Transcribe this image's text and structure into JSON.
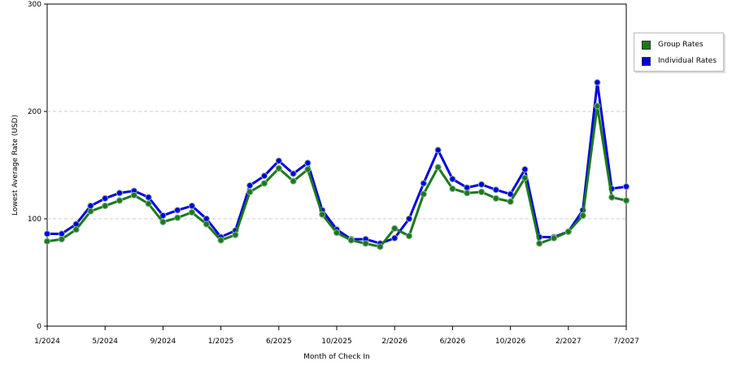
{
  "chart_data": {
    "type": "line",
    "xlabel": "Month of Check In",
    "ylabel": "Lowest Average Rate (USD)",
    "ylim": [
      0,
      300
    ],
    "yticks": [
      0,
      100,
      200,
      300
    ],
    "x_tick_labels": [
      "1/2024",
      "5/2024",
      "9/2024",
      "1/2025",
      "6/2025",
      "10/2025",
      "2/2026",
      "6/2026",
      "10/2026",
      "2/2027",
      "7/2027"
    ],
    "x_tick_indices": [
      0,
      4,
      8,
      12,
      16,
      20,
      24,
      28,
      32,
      36,
      40
    ],
    "grid": "horizontal dashed",
    "legend_position": "right",
    "series": [
      {
        "name": "Group Rates",
        "color": "#1a7a1a",
        "values": [
          79,
          81,
          90,
          107,
          112,
          117,
          122,
          114,
          97,
          101,
          106,
          95,
          80,
          85,
          125,
          133,
          147,
          135,
          146,
          104,
          87,
          80,
          77,
          74,
          91,
          84,
          123,
          148,
          128,
          124,
          125,
          119,
          116,
          138,
          77,
          82,
          88,
          103,
          205,
          120,
          117
        ]
      },
      {
        "name": "Individual Rates",
        "color": "#0000dd",
        "values": [
          86,
          86,
          95,
          112,
          119,
          124,
          126,
          120,
          103,
          108,
          112,
          100,
          83,
          89,
          131,
          140,
          154,
          142,
          152,
          108,
          90,
          81,
          81,
          77,
          82,
          100,
          133,
          164,
          137,
          129,
          132,
          127,
          123,
          146,
          83,
          83,
          88,
          108,
          227,
          128,
          130
        ]
      }
    ]
  }
}
